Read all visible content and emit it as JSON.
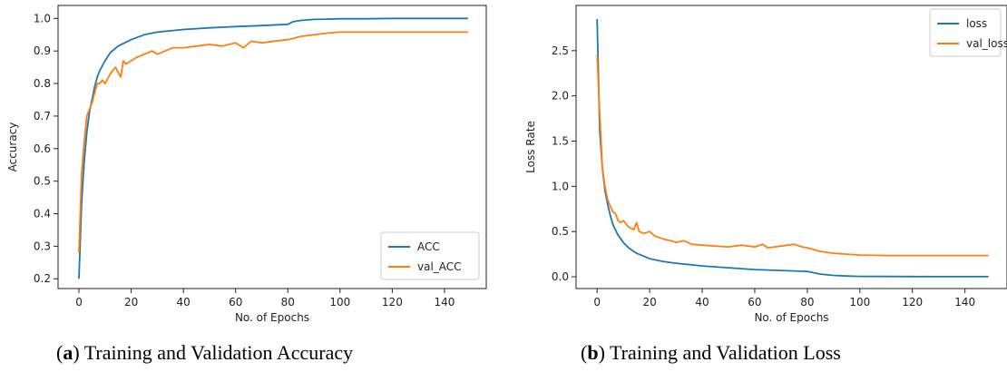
{
  "captions": [
    {
      "letter": "a",
      "text": "Training and Validation Accuracy"
    },
    {
      "letter": "b",
      "text": "Training and Validation Loss"
    }
  ],
  "colors": {
    "series1": "#1f77b4",
    "series2": "#ff7f0e"
  },
  "chart_data": [
    {
      "type": "line",
      "xlabel": "No. of Epochs",
      "ylabel": "Accuracy",
      "xlim": [
        -8,
        156
      ],
      "ylim": [
        0.17,
        1.04
      ],
      "xticks": [
        0,
        20,
        40,
        60,
        80,
        100,
        120,
        140
      ],
      "yticks": [
        0.2,
        0.3,
        0.4,
        0.5,
        0.6,
        0.7,
        0.8,
        0.9,
        1.0
      ],
      "legend": "lower-right",
      "series": [
        {
          "name": "ACC",
          "color": "#1f77b4",
          "x": [
            0,
            1,
            2,
            3,
            4,
            5,
            6,
            7,
            8,
            10,
            12,
            15,
            20,
            25,
            30,
            40,
            50,
            60,
            70,
            80,
            82,
            85,
            90,
            95,
            100,
            110,
            120,
            130,
            140,
            149
          ],
          "y": [
            0.2,
            0.43,
            0.56,
            0.65,
            0.71,
            0.75,
            0.79,
            0.82,
            0.84,
            0.87,
            0.895,
            0.915,
            0.935,
            0.95,
            0.958,
            0.966,
            0.971,
            0.975,
            0.978,
            0.982,
            0.99,
            0.994,
            0.997,
            0.998,
            0.999,
            0.999,
            1.0,
            1.0,
            1.0,
            1.0
          ]
        },
        {
          "name": "val_ACC",
          "color": "#ff7f0e",
          "x": [
            0,
            1,
            2,
            3,
            4,
            5,
            6,
            7,
            8,
            9,
            10,
            12,
            14,
            16,
            17,
            18,
            20,
            22,
            25,
            28,
            30,
            33,
            36,
            40,
            45,
            50,
            55,
            60,
            63,
            66,
            70,
            75,
            80,
            85,
            90,
            95,
            100,
            110,
            120,
            130,
            140,
            149
          ],
          "y": [
            0.28,
            0.52,
            0.62,
            0.7,
            0.72,
            0.74,
            0.77,
            0.8,
            0.8,
            0.81,
            0.8,
            0.83,
            0.85,
            0.82,
            0.87,
            0.86,
            0.87,
            0.88,
            0.89,
            0.9,
            0.89,
            0.9,
            0.91,
            0.91,
            0.915,
            0.92,
            0.915,
            0.925,
            0.91,
            0.93,
            0.925,
            0.93,
            0.935,
            0.945,
            0.95,
            0.955,
            0.958,
            0.958,
            0.958,
            0.958,
            0.958,
            0.958
          ]
        }
      ]
    },
    {
      "type": "line",
      "xlabel": "No. of Epochs",
      "ylabel": "Loss Rate",
      "xlim": [
        -8,
        156
      ],
      "ylim": [
        -0.13,
        3.0
      ],
      "xticks": [
        0,
        20,
        40,
        60,
        80,
        100,
        120,
        140
      ],
      "yticks": [
        0.0,
        0.5,
        1.0,
        1.5,
        2.0,
        2.5
      ],
      "legend": "top-right",
      "series": [
        {
          "name": "loss",
          "color": "#1f77b4",
          "x": [
            0,
            1,
            2,
            3,
            4,
            5,
            6,
            8,
            10,
            12,
            15,
            20,
            25,
            30,
            40,
            50,
            60,
            70,
            80,
            85,
            90,
            95,
            100,
            110,
            120,
            130,
            140,
            149
          ],
          "y": [
            2.85,
            1.6,
            1.2,
            0.95,
            0.8,
            0.68,
            0.58,
            0.46,
            0.38,
            0.32,
            0.26,
            0.2,
            0.17,
            0.15,
            0.12,
            0.1,
            0.08,
            0.07,
            0.06,
            0.03,
            0.015,
            0.008,
            0.004,
            0.003,
            0.002,
            0.001,
            0.001,
            0.001
          ]
        },
        {
          "name": "val_loss",
          "color": "#ff7f0e",
          "x": [
            0,
            1,
            2,
            3,
            4,
            5,
            6,
            7,
            8,
            9,
            10,
            12,
            14,
            15,
            16,
            18,
            20,
            22,
            25,
            28,
            30,
            33,
            36,
            40,
            45,
            50,
            55,
            60,
            63,
            65,
            70,
            75,
            78,
            80,
            85,
            90,
            95,
            100,
            110,
            120,
            130,
            140,
            149
          ],
          "y": [
            2.45,
            1.8,
            1.2,
            1.0,
            0.85,
            0.78,
            0.72,
            0.7,
            0.62,
            0.6,
            0.62,
            0.55,
            0.52,
            0.6,
            0.5,
            0.48,
            0.5,
            0.45,
            0.42,
            0.4,
            0.38,
            0.4,
            0.36,
            0.35,
            0.34,
            0.33,
            0.35,
            0.33,
            0.36,
            0.32,
            0.34,
            0.36,
            0.33,
            0.32,
            0.28,
            0.26,
            0.25,
            0.24,
            0.235,
            0.235,
            0.235,
            0.235,
            0.235
          ]
        }
      ]
    }
  ]
}
